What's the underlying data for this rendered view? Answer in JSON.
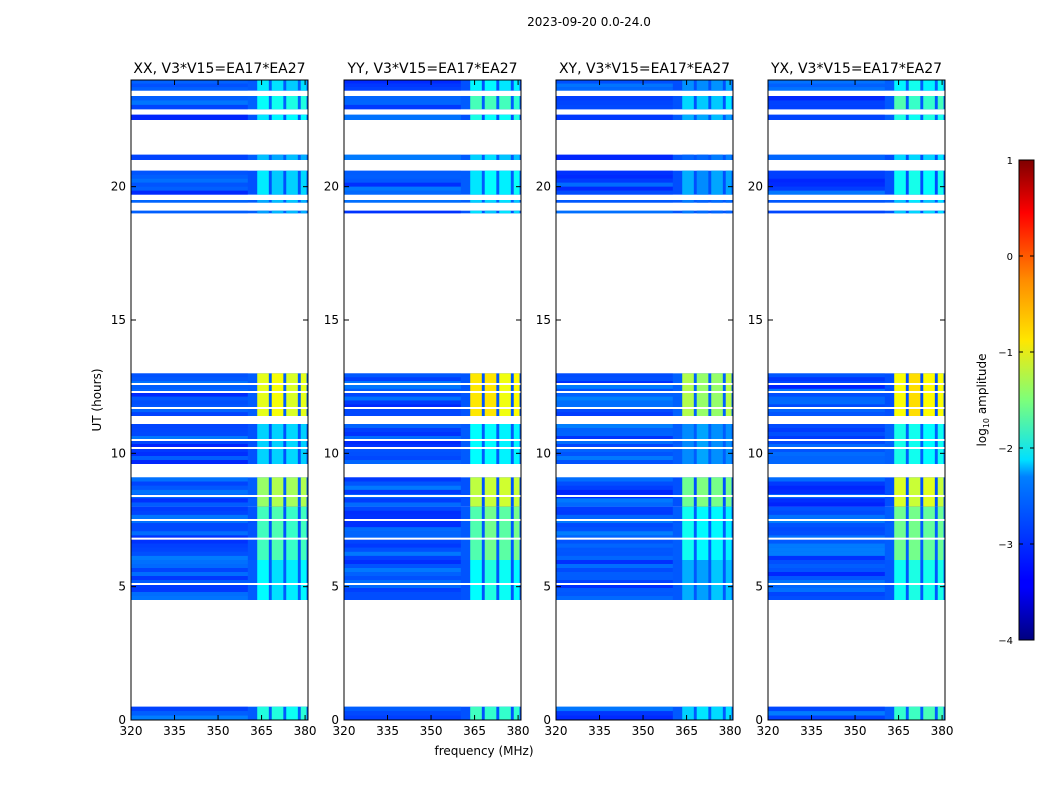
{
  "figure": {
    "suptitle": "2023-09-20 0.0-24.0",
    "xlabel": "frequency (MHz)",
    "ylabel": "UT (hours)"
  },
  "chart_data": {
    "type": "heatmap",
    "title": "2023-09-20 0.0-24.0",
    "xlabel": "frequency (MHz)",
    "ylabel": "UT (hours)",
    "xlim": [
      320,
      381
    ],
    "ylim": [
      0,
      24
    ],
    "xticks": [
      "320",
      "335",
      "350",
      "365",
      "380"
    ],
    "yticks": [
      "0",
      "5",
      "10",
      "15",
      "20"
    ],
    "panels": [
      {
        "title": "XX, V3*V15=EA17*EA27",
        "pol": "XX"
      },
      {
        "title": "YY, V3*V15=EA17*EA27",
        "pol": "YY"
      },
      {
        "title": "XY, V3*V15=EA17*EA27",
        "pol": "XY"
      },
      {
        "title": "YX, V3*V15=EA17*EA27",
        "pol": "YX"
      }
    ],
    "hot_channels_mhz": [
      [
        363.5,
        367.5
      ],
      [
        368.5,
        372.5
      ],
      [
        373.5,
        377.5
      ],
      [
        378.5,
        380.5
      ]
    ],
    "background_log_amplitude": -3.0,
    "data_intervals_ut": [
      {
        "start": 0.0,
        "end": 0.5,
        "hot_level": -2.0
      },
      {
        "start": 4.5,
        "end": 6.0,
        "hot_level": -2.2
      },
      {
        "start": 6.0,
        "end": 8.0,
        "hot_level": -1.8
      },
      {
        "start": 8.0,
        "end": 9.1,
        "hot_level": -1.3
      },
      {
        "start": 9.6,
        "end": 11.1,
        "hot_level": -2.3
      },
      {
        "start": 11.4,
        "end": 13.0,
        "hot_level": -1.0
      },
      {
        "start": 19.0,
        "end": 19.1,
        "hot_level": -2.5
      },
      {
        "start": 19.4,
        "end": 19.5,
        "hot_level": -2.5
      },
      {
        "start": 19.7,
        "end": 20.6,
        "hot_level": -2.3
      },
      {
        "start": 21.0,
        "end": 21.2,
        "hot_level": -2.5
      },
      {
        "start": 22.5,
        "end": 22.7,
        "hot_level": -2.2
      },
      {
        "start": 22.9,
        "end": 23.4,
        "hot_level": -2.0
      },
      {
        "start": 23.6,
        "end": 24.0,
        "hot_level": -2.3
      }
    ],
    "flagged_gaps_ut": [
      9.25,
      9.45,
      10.2,
      10.5,
      11.7,
      12.3,
      12.6,
      7.5,
      6.8,
      5.1,
      8.4,
      21.4,
      21.6,
      21.8,
      22.0,
      22.2,
      22.4
    ],
    "colorbar": {
      "label": "log10 amplitude",
      "label_main": "log",
      "label_sub": "10",
      "label_rest": " amplitude",
      "min": -4,
      "max": 1,
      "ticks": [
        "−4",
        "−3",
        "−2",
        "−1",
        "0",
        "1"
      ],
      "colormap": "jet"
    }
  }
}
